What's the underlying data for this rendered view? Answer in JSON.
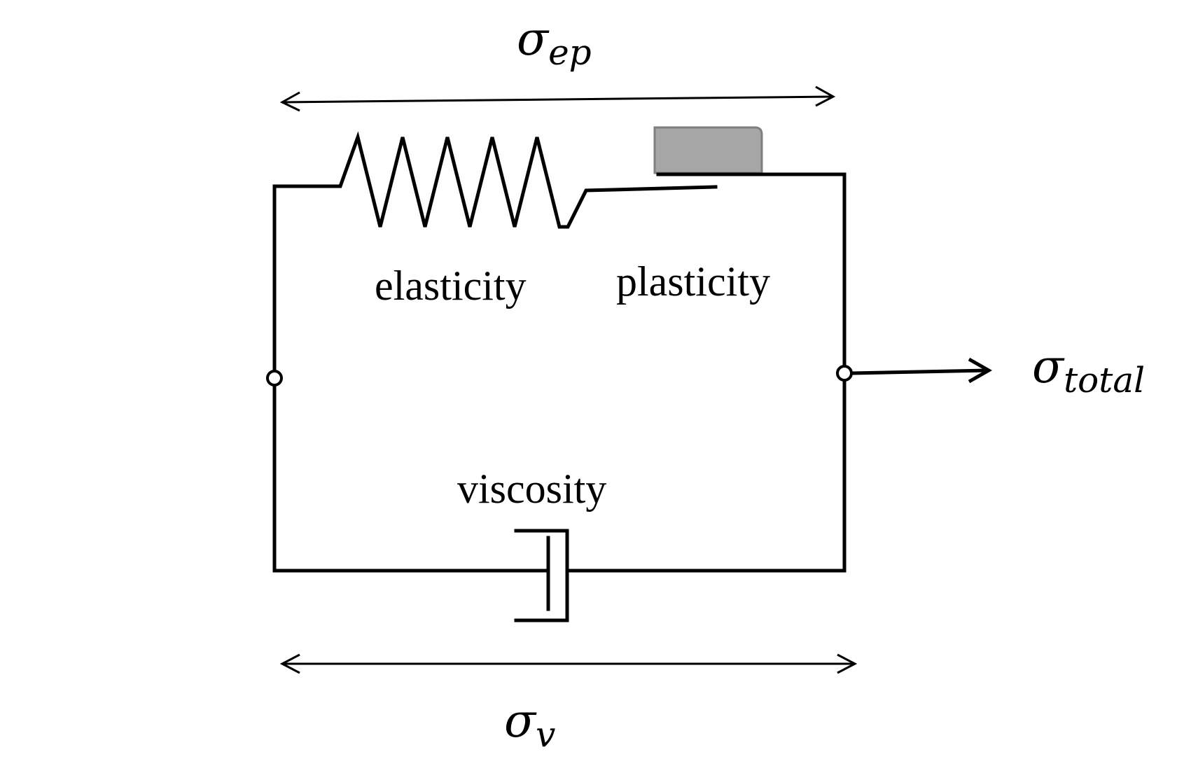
{
  "labels": {
    "elasticity": "elasticity",
    "plasticity": "plasticity",
    "viscosity": "viscosity"
  },
  "symbols": {
    "ep": {
      "main": "σ",
      "sub": "ep"
    },
    "v": {
      "main": "σ",
      "sub": "v"
    },
    "total": {
      "main": "σ",
      "sub": "total"
    }
  },
  "colors": {
    "line": "#000000",
    "plastic_block": "#a6a6a6",
    "plastic_block_border": "#7f7f7f"
  }
}
